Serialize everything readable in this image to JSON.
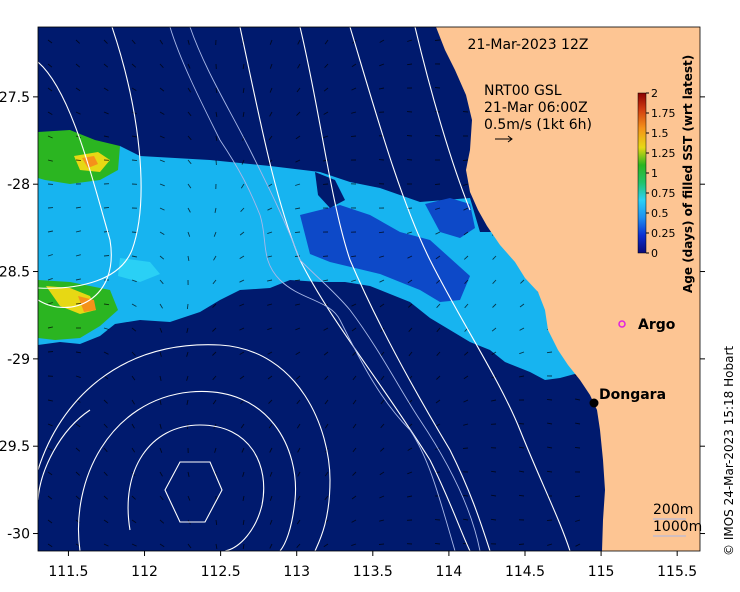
{
  "title": "21-Mar-2023 12Z",
  "current_label": {
    "line1": "NRT00 GSL",
    "line2": "21-Mar 06:00Z",
    "line3": "0.5m/s (1kt 6h)"
  },
  "places": {
    "argo": "Argo",
    "dongara": "Dongara"
  },
  "depth_labels": {
    "d200": "200m",
    "d1000": "1000m"
  },
  "credit": "© IMOS 24-Mar-2023 15:18 Hobart",
  "colorbar": {
    "title": "Age (days) of filled SST (wrt latest)",
    "ticks": [
      "0",
      "0.25",
      "0.5",
      "0.75",
      "1",
      "1.25",
      "1.5",
      "1.75",
      "2"
    ],
    "colors": [
      "#0a0a78",
      "#0c2fd2",
      "#1f8ff0",
      "#2ad0f5",
      "#22c36a",
      "#2bb521",
      "#e7d814",
      "#f5921a",
      "#d03a10",
      "#8b0000"
    ]
  },
  "axes": {
    "x_ticks": [
      "111.5",
      "112",
      "112.5",
      "113",
      "113.5",
      "114",
      "114.5",
      "115",
      "115.5"
    ],
    "y_ticks": [
      "-27.5",
      "-28",
      "-28.5",
      "-29",
      "-29.5",
      "-30"
    ],
    "x_range": [
      111.3,
      115.65
    ],
    "y_range": [
      -30.1,
      -27.1
    ]
  },
  "colors": {
    "ocean_base": "#001a6e",
    "sst_band": "#17b4f0",
    "mid_blue": "#0d49c8",
    "land": "#fdc593",
    "argo_marker": "#e020e0"
  }
}
